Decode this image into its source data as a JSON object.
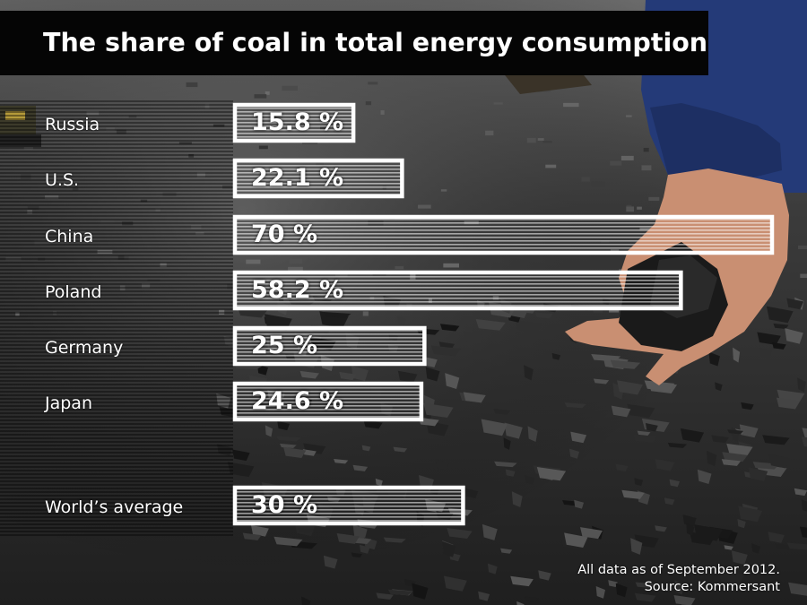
{
  "title": "The share of coal in total energy consumption",
  "note": "All data as of September 2012.",
  "source": "Source:  Kommersant",
  "colors": {
    "background": "#2b2b2b",
    "title_background": "#050505",
    "text": "#ffffff",
    "bar_outline": "#ffffff",
    "bar_stripe": "#ffffff",
    "sleeve": "#243a78",
    "hand": "#c98f72"
  },
  "chart_data": {
    "type": "bar",
    "orientation": "horizontal",
    "title": "The share of coal in total energy consumption",
    "xlabel": "",
    "ylabel": "",
    "unit": "%",
    "grid": false,
    "legend": "none",
    "xlim": [
      0,
      70
    ],
    "categories": [
      "Russia",
      "U.S.",
      "China",
      "Poland",
      "Germany",
      "Japan",
      "World’s average"
    ],
    "values": [
      15.8,
      22.1,
      70,
      58.2,
      25,
      24.6,
      30
    ],
    "data_labels": [
      "15.8 %",
      "22.1 %",
      "70 %",
      "58.2 %",
      "25 %",
      "24.6 %",
      "30 %"
    ]
  }
}
